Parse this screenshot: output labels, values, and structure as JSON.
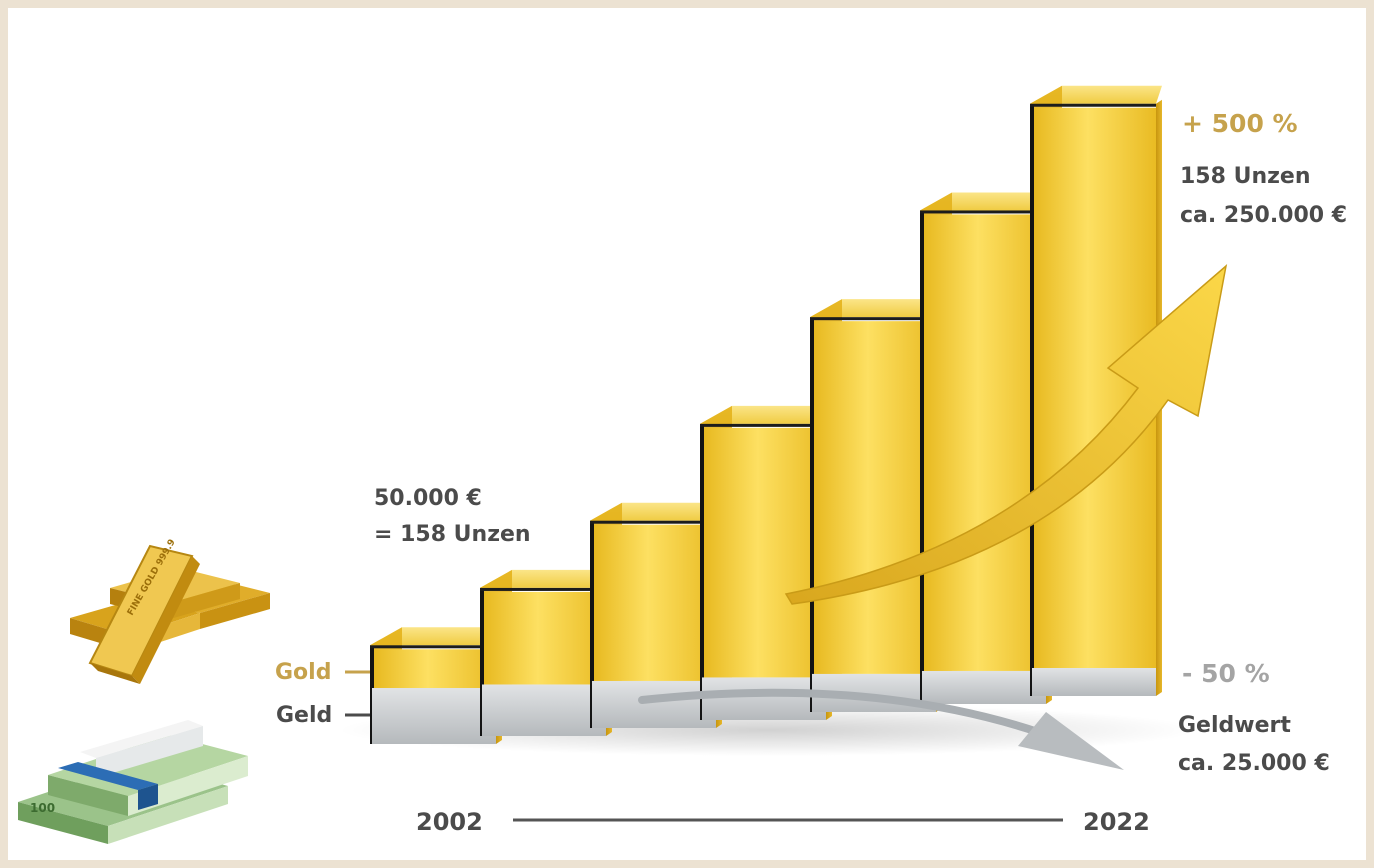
{
  "chart_data": {
    "type": "bar",
    "categories": [
      "",
      "",
      "",
      "",
      "",
      "",
      ""
    ],
    "series": [
      {
        "name": "Gold",
        "values": [
          100,
          150,
          210,
          300,
          400,
          500,
          600
        ]
      },
      {
        "name": "Geld",
        "values": [
          100,
          92,
          84,
          76,
          68,
          59,
          50
        ]
      }
    ],
    "x_start": "2002",
    "x_end": "2022",
    "ylim": [
      0,
      620
    ],
    "grid": false,
    "legend": "left"
  },
  "labels": {
    "start_line1": "50.000 €",
    "start_line2": "= 158 Unzen",
    "gold_change": "+ 500 %",
    "gold_line1": "158 Unzen",
    "gold_line2": "ca. 250.000 €",
    "money_change": "- 50 %",
    "money_line1": "Geldwert",
    "money_line2": "ca. 25.000 €",
    "legend_gold": "Gold",
    "legend_money": "Geld",
    "year_start": "2002",
    "year_end": "2022"
  },
  "colors": {
    "gold": "#f2c92f",
    "gold_label": "#c6a24c",
    "money": "#cfd2d4",
    "text": "#4b4b4b"
  },
  "icons": [
    "gold-bars-icon",
    "money-stack-icon",
    "trend-up-arrow-icon",
    "trend-down-arrow-icon"
  ]
}
